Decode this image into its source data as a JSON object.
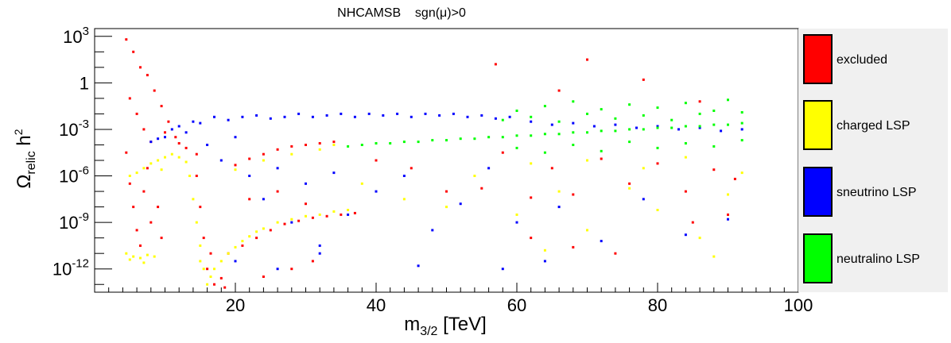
{
  "chart_data": {
    "type": "scatter",
    "title": "NHCAMSB    sgn(μ)>0",
    "xlabel": {
      "main": "m",
      "sub": "3/2",
      "tail": " [TeV]"
    },
    "ylabel": {
      "main": "Ω",
      "sub": "relic",
      "mid": " h",
      "sup": "2"
    },
    "x_range": [
      0,
      100
    ],
    "y_log_range": [
      -13.5,
      3.5
    ],
    "x_ticks": [
      {
        "value": 20,
        "label": "20"
      },
      {
        "value": 40,
        "label": "40"
      },
      {
        "value": 60,
        "label": "60"
      },
      {
        "value": 80,
        "label": "80"
      },
      {
        "value": 100,
        "label": "100"
      }
    ],
    "y_ticks": [
      {
        "exp": 3,
        "base": "10",
        "power": "3"
      },
      {
        "exp": 0,
        "base": "1",
        "power": ""
      },
      {
        "exp": -3,
        "base": "10",
        "power": "-3"
      },
      {
        "exp": -6,
        "base": "10",
        "power": "-6"
      },
      {
        "exp": -9,
        "base": "10",
        "power": "-9"
      },
      {
        "exp": -12,
        "base": "10",
        "power": "-12"
      }
    ],
    "legend": [
      {
        "label": "excluded",
        "color": "#ff0000"
      },
      {
        "label": "charged LSP",
        "color": "#ffff00"
      },
      {
        "label": "sneutrino LSP",
        "color": "#0000ff"
      },
      {
        "label": "neutralino LSP",
        "color": "#00ff00"
      }
    ],
    "legend_position": "right",
    "series": [
      {
        "name": "excluded",
        "color": "#ff0000",
        "points": [
          [
            4.5,
            2.8
          ],
          [
            5.5,
            2.0
          ],
          [
            6.5,
            1.0
          ],
          [
            7.5,
            0.5
          ],
          [
            8.5,
            -0.5
          ],
          [
            9.5,
            -1.5
          ],
          [
            10.5,
            -2.5
          ],
          [
            11.5,
            -3.5
          ],
          [
            13,
            -4.2
          ],
          [
            14.5,
            -4.6
          ],
          [
            5,
            -1.0
          ],
          [
            6,
            -2.0
          ],
          [
            7,
            -3.0
          ],
          [
            8,
            -3.8
          ],
          [
            10,
            -3.2
          ],
          [
            12,
            -3.9
          ],
          [
            4.5,
            -4.5
          ],
          [
            5,
            -6.5
          ],
          [
            5.5,
            -8.0
          ],
          [
            6,
            -9.5
          ],
          [
            7,
            -7.0
          ],
          [
            8,
            -9.0
          ],
          [
            9,
            -8.0
          ],
          [
            9.5,
            -10.0
          ],
          [
            7.5,
            -5.5
          ],
          [
            6.5,
            -10.5
          ],
          [
            14.5,
            -6.0
          ],
          [
            15,
            -8.0
          ],
          [
            15.5,
            -10.0
          ],
          [
            16,
            -12.0
          ],
          [
            17,
            -13.0
          ],
          [
            18,
            -12.6
          ],
          [
            16.5,
            -11.0
          ],
          [
            18.5,
            -13.2
          ],
          [
            20,
            -5.3
          ],
          [
            22,
            -4.9
          ],
          [
            24,
            -4.6
          ],
          [
            26,
            -4.3
          ],
          [
            28,
            -4.1
          ],
          [
            30,
            -4.0
          ],
          [
            32,
            -3.9
          ],
          [
            34,
            -3.8
          ],
          [
            19,
            -11.0
          ],
          [
            21,
            -10.5
          ],
          [
            23,
            -10.0
          ],
          [
            25,
            -9.5
          ],
          [
            27,
            -9.1
          ],
          [
            29,
            -8.9
          ],
          [
            31,
            -8.7
          ],
          [
            33,
            -8.6
          ],
          [
            35,
            -8.5
          ],
          [
            37,
            -8.4
          ],
          [
            22,
            -7.5
          ],
          [
            26,
            -7.0
          ],
          [
            30,
            -7.8
          ],
          [
            24,
            -12.5
          ],
          [
            28,
            -12.0
          ],
          [
            31,
            -11.5
          ],
          [
            40,
            -5.0
          ],
          [
            45,
            -5.5
          ],
          [
            50,
            -7.0
          ],
          [
            55,
            -6.8
          ],
          [
            58,
            -4.5
          ],
          [
            62,
            -7.4
          ],
          [
            65,
            -5.5
          ],
          [
            68,
            -7.2
          ],
          [
            72,
            -4.9
          ],
          [
            76,
            -6.5
          ],
          [
            80,
            -5.2
          ],
          [
            84,
            -7.0
          ],
          [
            88,
            -5.6
          ],
          [
            91,
            -6.2
          ],
          [
            57,
            1.2
          ],
          [
            66,
            -0.5
          ],
          [
            70,
            1.5
          ],
          [
            78,
            0.2
          ],
          [
            86,
            -1.2
          ],
          [
            62,
            -10.0
          ],
          [
            74,
            -11.0
          ],
          [
            85,
            -9.0
          ],
          [
            90,
            -8.5
          ],
          [
            68,
            -10.6
          ]
        ]
      },
      {
        "name": "charged LSP",
        "color": "#ffff00",
        "points": [
          [
            6,
            -5.8
          ],
          [
            7,
            -5.5
          ],
          [
            8,
            -5.2
          ],
          [
            9,
            -5.0
          ],
          [
            10,
            -4.8
          ],
          [
            11,
            -4.6
          ],
          [
            12,
            -4.8
          ],
          [
            13,
            -5.1
          ],
          [
            5,
            -6.0
          ],
          [
            9.5,
            -5.6
          ],
          [
            4.5,
            -11.0
          ],
          [
            5.5,
            -11.2
          ],
          [
            6.5,
            -11.3
          ],
          [
            7.5,
            -11.1
          ],
          [
            8.5,
            -11.2
          ],
          [
            5,
            -11.4
          ],
          [
            7,
            -11.6
          ],
          [
            13.5,
            -6.0
          ],
          [
            14,
            -7.5
          ],
          [
            14.5,
            -9.0
          ],
          [
            15,
            -10.5
          ],
          [
            15.5,
            -12.0
          ],
          [
            16,
            -13.0
          ],
          [
            16.5,
            -12.5
          ],
          [
            15,
            -11.5
          ],
          [
            17,
            -12.0
          ],
          [
            18,
            -11.5
          ],
          [
            19,
            -11.0
          ],
          [
            20,
            -10.6
          ],
          [
            21,
            -10.2
          ],
          [
            22,
            -9.9
          ],
          [
            23,
            -9.6
          ],
          [
            24,
            -9.4
          ],
          [
            26,
            -9.0
          ],
          [
            28,
            -8.8
          ],
          [
            30,
            -8.6
          ],
          [
            32,
            -8.5
          ],
          [
            34,
            -8.3
          ],
          [
            36,
            -8.2
          ],
          [
            20,
            -5.6
          ],
          [
            24,
            -5.0
          ],
          [
            28,
            -4.6
          ],
          [
            32,
            -4.3
          ],
          [
            34,
            -4.0
          ],
          [
            38,
            -6.5
          ],
          [
            44,
            -7.5
          ],
          [
            50,
            -8.0
          ],
          [
            54,
            -6.0
          ],
          [
            60,
            -8.5
          ],
          [
            66,
            -7.0
          ],
          [
            70,
            -9.5
          ],
          [
            76,
            -6.8
          ],
          [
            80,
            -8.2
          ],
          [
            86,
            -10.0
          ],
          [
            90,
            -7.2
          ],
          [
            62,
            -5.2
          ],
          [
            70,
            -5.0
          ],
          [
            78,
            -5.5
          ],
          [
            84,
            -4.8
          ],
          [
            92,
            -5.8
          ],
          [
            64,
            -10.8
          ],
          [
            88,
            -11.2
          ]
        ]
      },
      {
        "name": "sneutrino LSP",
        "color": "#0000ff",
        "points": [
          [
            8,
            -3.8
          ],
          [
            9,
            -3.6
          ],
          [
            10,
            -3.5
          ],
          [
            11,
            -3.0
          ],
          [
            12,
            -2.8
          ],
          [
            13,
            -3.2
          ],
          [
            14,
            -2.5
          ],
          [
            15,
            -2.6
          ],
          [
            17,
            -2.2
          ],
          [
            19,
            -2.4
          ],
          [
            21,
            -2.2
          ],
          [
            23,
            -2.1
          ],
          [
            25,
            -2.3
          ],
          [
            27,
            -2.2
          ],
          [
            29,
            -2.0
          ],
          [
            31,
            -2.2
          ],
          [
            33,
            -2.1
          ],
          [
            35,
            -2.0
          ],
          [
            37,
            -2.2
          ],
          [
            39,
            -2.0
          ],
          [
            41,
            -2.1
          ],
          [
            43,
            -2.0
          ],
          [
            45,
            -2.2
          ],
          [
            47,
            -2.0
          ],
          [
            49,
            -2.1
          ],
          [
            51,
            -2.0
          ],
          [
            53,
            -2.2
          ],
          [
            55,
            -2.1
          ],
          [
            57,
            -2.3
          ],
          [
            59,
            -2.2
          ],
          [
            62,
            -2.5
          ],
          [
            65,
            -2.7
          ],
          [
            68,
            -2.6
          ],
          [
            71,
            -2.8
          ],
          [
            74,
            -2.7
          ],
          [
            77,
            -2.9
          ],
          [
            80,
            -2.8
          ],
          [
            83,
            -3.0
          ],
          [
            86,
            -2.9
          ],
          [
            89,
            -3.1
          ],
          [
            92,
            -3.0
          ],
          [
            16,
            -4.0
          ],
          [
            18,
            -5.0
          ],
          [
            20,
            -3.5
          ],
          [
            22,
            -6.0
          ],
          [
            24,
            -7.5
          ],
          [
            26,
            -5.5
          ],
          [
            28,
            -9.0
          ],
          [
            30,
            -6.5
          ],
          [
            32,
            -10.5
          ],
          [
            34,
            -5.8
          ],
          [
            36,
            -8.5
          ],
          [
            40,
            -7.0
          ],
          [
            44,
            -6.0
          ],
          [
            48,
            -9.5
          ],
          [
            52,
            -7.8
          ],
          [
            56,
            -5.5
          ],
          [
            60,
            -9.0
          ],
          [
            66,
            -8.0
          ],
          [
            72,
            -10.2
          ],
          [
            78,
            -7.5
          ],
          [
            84,
            -9.8
          ],
          [
            90,
            -8.8
          ],
          [
            20,
            -11.5
          ],
          [
            26,
            -12.0
          ],
          [
            32,
            -11.0
          ],
          [
            46,
            -11.8
          ],
          [
            58,
            -12.0
          ],
          [
            64,
            -11.5
          ]
        ]
      },
      {
        "name": "neutralino LSP",
        "color": "#00ff00",
        "points": [
          [
            36,
            -4.1
          ],
          [
            38,
            -4.0
          ],
          [
            40,
            -3.9
          ],
          [
            42,
            -3.9
          ],
          [
            44,
            -3.8
          ],
          [
            46,
            -3.8
          ],
          [
            48,
            -3.7
          ],
          [
            50,
            -3.7
          ],
          [
            52,
            -3.6
          ],
          [
            54,
            -3.6
          ],
          [
            56,
            -3.5
          ],
          [
            58,
            -3.5
          ],
          [
            60,
            -3.4
          ],
          [
            62,
            -3.4
          ],
          [
            64,
            -3.3
          ],
          [
            66,
            -3.3
          ],
          [
            68,
            -3.2
          ],
          [
            70,
            -3.2
          ],
          [
            72,
            -3.1
          ],
          [
            74,
            -3.1
          ],
          [
            76,
            -3.0
          ],
          [
            78,
            -3.0
          ],
          [
            80,
            -2.9
          ],
          [
            82,
            -2.9
          ],
          [
            84,
            -2.8
          ],
          [
            86,
            -2.8
          ],
          [
            88,
            -2.7
          ],
          [
            90,
            -2.7
          ],
          [
            92,
            -2.6
          ],
          [
            58,
            -2.4
          ],
          [
            60,
            -1.8
          ],
          [
            62,
            -2.2
          ],
          [
            64,
            -1.5
          ],
          [
            66,
            -2.5
          ],
          [
            68,
            -1.2
          ],
          [
            70,
            -2.0
          ],
          [
            72,
            -1.7
          ],
          [
            74,
            -2.3
          ],
          [
            76,
            -1.4
          ],
          [
            78,
            -2.1
          ],
          [
            80,
            -1.6
          ],
          [
            82,
            -2.4
          ],
          [
            84,
            -1.3
          ],
          [
            86,
            -2.0
          ],
          [
            88,
            -1.8
          ],
          [
            90,
            -1.1
          ],
          [
            92,
            -1.9
          ],
          [
            60,
            -4.2
          ],
          [
            64,
            -4.5
          ],
          [
            68,
            -4.0
          ],
          [
            72,
            -4.4
          ],
          [
            76,
            -3.8
          ],
          [
            80,
            -4.2
          ],
          [
            84,
            -3.9
          ],
          [
            88,
            -4.1
          ],
          [
            92,
            -3.7
          ]
        ]
      }
    ]
  }
}
